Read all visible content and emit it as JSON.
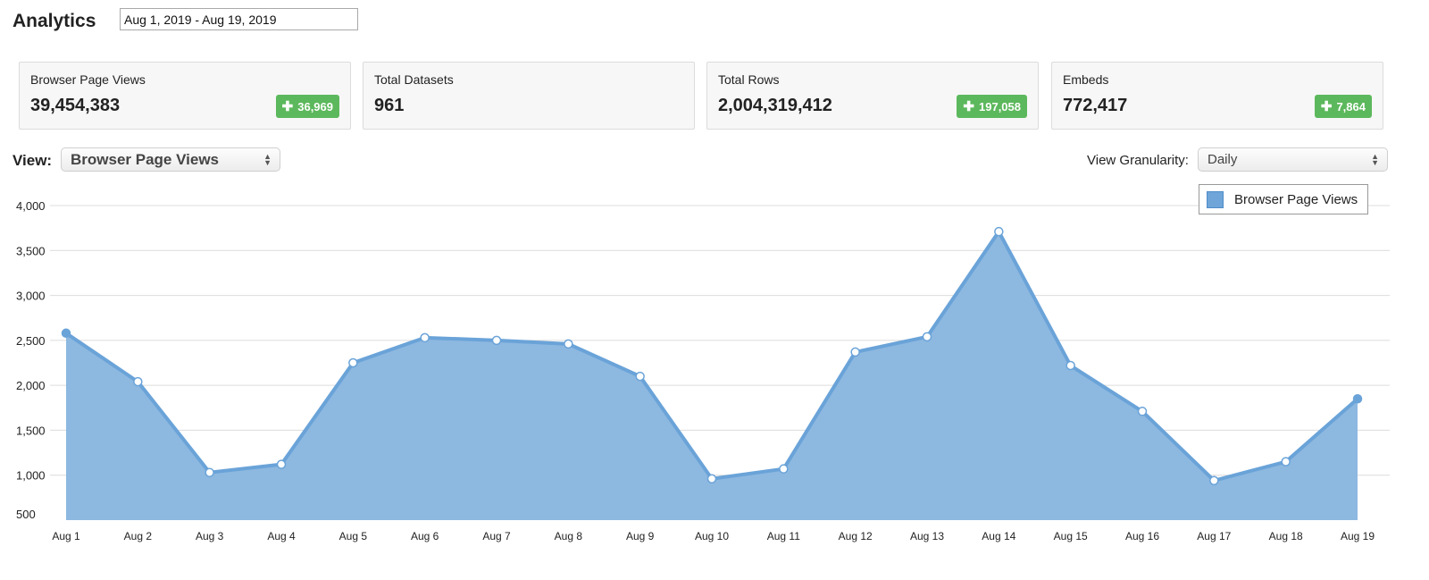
{
  "header": {
    "title": "Analytics",
    "date_range": "Aug 1, 2019 - Aug 19, 2019"
  },
  "stats": [
    {
      "label": "Browser Page Views",
      "value": "39,454,383",
      "badge": "36,969"
    },
    {
      "label": "Total Datasets",
      "value": "961",
      "badge": ""
    },
    {
      "label": "Total Rows",
      "value": "2,004,319,412",
      "badge": "197,058"
    },
    {
      "label": "Embeds",
      "value": "772,417",
      "badge": "7,864"
    }
  ],
  "controls": {
    "view_label": "View:",
    "view_selected": "Browser Page Views",
    "granularity_label": "View Granularity:",
    "granularity_selected": "Daily"
  },
  "colors": {
    "badge": "#5cb85c",
    "series_fill": "#8db8e0",
    "series_line": "#6aa3d8"
  },
  "chart_data": {
    "type": "area",
    "categories": [
      "Aug 1",
      "Aug 2",
      "Aug 3",
      "Aug 4",
      "Aug 5",
      "Aug 6",
      "Aug 7",
      "Aug 8",
      "Aug 9",
      "Aug 10",
      "Aug 11",
      "Aug 12",
      "Aug 13",
      "Aug 14",
      "Aug 15",
      "Aug 16",
      "Aug 17",
      "Aug 18",
      "Aug 19"
    ],
    "series": [
      {
        "name": "Browser Page Views",
        "values": [
          2580,
          2040,
          1030,
          1120,
          2250,
          2530,
          2500,
          2460,
          2100,
          960,
          1070,
          2370,
          2540,
          3710,
          2220,
          1710,
          940,
          1150,
          1850
        ]
      }
    ],
    "yticks": [
      500,
      1000,
      1500,
      2000,
      2500,
      3000,
      3500,
      4000
    ],
    "ytick_labels": [
      "500",
      "1,000",
      "1,500",
      "2,000",
      "2,500",
      "3,000",
      "3,500",
      "4,000"
    ],
    "ylim": [
      500,
      4000
    ],
    "grid": true,
    "legend": "top-right"
  }
}
